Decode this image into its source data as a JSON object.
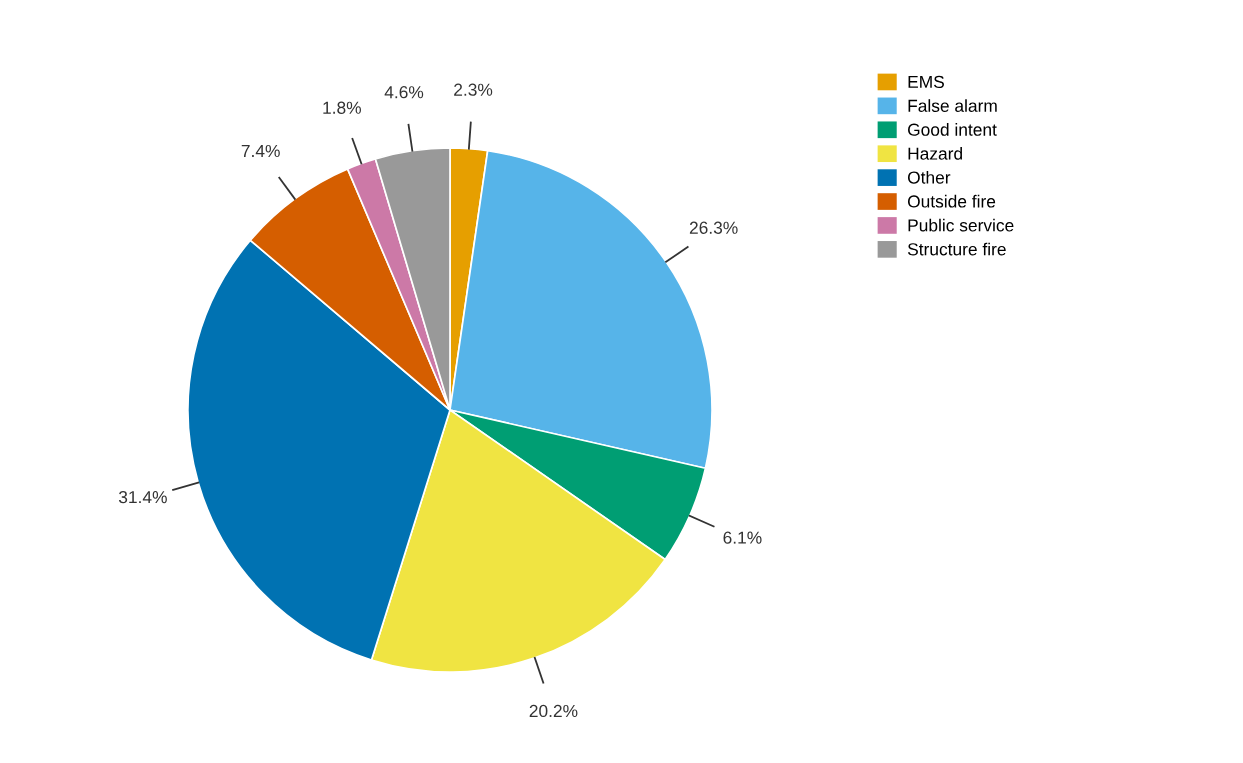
{
  "chart_data": {
    "type": "pie",
    "categories": [
      "EMS",
      "False alarm",
      "Good intent",
      "Hazard",
      "Other",
      "Outside fire",
      "Public service",
      "Structure fire"
    ],
    "values": [
      2.3,
      26.3,
      6.1,
      20.2,
      31.4,
      7.4,
      1.8,
      4.6
    ],
    "colors": [
      "#e69f00",
      "#56b4e9",
      "#009e73",
      "#f0e442",
      "#0072b2",
      "#d55e00",
      "#cc79a7",
      "#999999"
    ],
    "value_labels": [
      "2.3%",
      "26.3%",
      "6.1%",
      "20.2%",
      "31.4%",
      "7.4%",
      "1.8%",
      "4.6%"
    ],
    "legend": "right"
  }
}
